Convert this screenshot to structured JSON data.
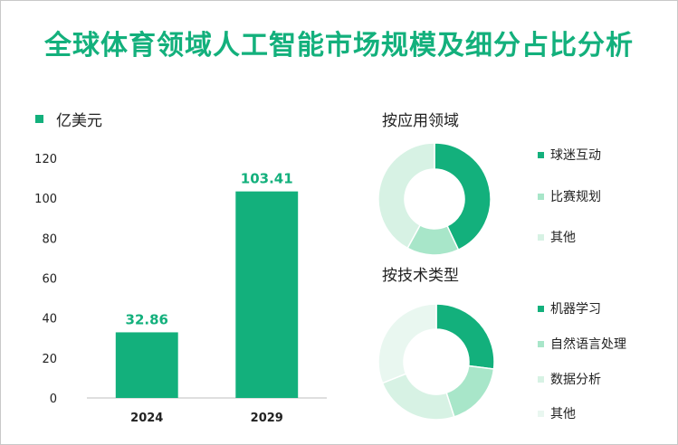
{
  "title": "全球体育领域人工智能市场规模及细分占比分析",
  "unit_legend": "亿美元",
  "colors": {
    "title": "#13b07c",
    "bar": "#13b07c",
    "pie": [
      "#13b07c",
      "#a8e6c9",
      "#d7f2e4",
      "#e9f7f0"
    ]
  },
  "chart_data": [
    {
      "type": "bar",
      "title": "",
      "categories": [
        "2024",
        "2029"
      ],
      "values": [
        32.86,
        103.41
      ],
      "value_labels": [
        "32.86",
        "103.41"
      ],
      "ylim": [
        0,
        120
      ],
      "yticks": [
        "0",
        "20",
        "40",
        "60",
        "80",
        "100",
        "120"
      ],
      "series_name": "亿美元",
      "grid": false
    },
    {
      "type": "pie",
      "style": "donut",
      "title": "按应用领域",
      "labels": [
        "球迷互动",
        "比赛规划",
        "其他"
      ],
      "values": [
        43,
        15,
        42
      ]
    },
    {
      "type": "pie",
      "style": "donut",
      "title": "按技术类型",
      "labels": [
        "机器学习",
        "自然语言处理",
        "数据分析",
        "其他"
      ],
      "values": [
        27,
        18,
        24,
        31
      ]
    }
  ]
}
